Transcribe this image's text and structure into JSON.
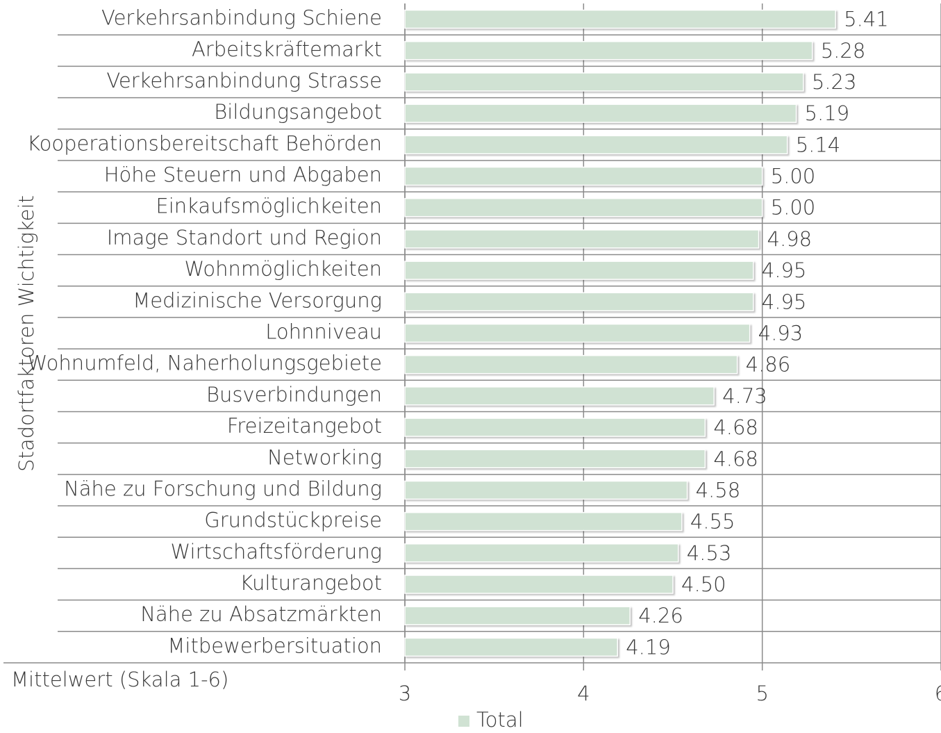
{
  "chart_data": {
    "type": "bar",
    "orientation": "horizontal",
    "y_label": "Stadortfaktoren Wichtigkeit",
    "x_label": "Mittelwert (Skala 1-6)",
    "categories": [
      "Verkehrsanbindung Schiene",
      "Arbeitskräftemarkt",
      "Verkehrsanbindung Strasse",
      "Bildungsangebot",
      "Kooperationsbereitschaft Behörden",
      "Höhe Steuern und Abgaben",
      "Einkaufsmöglichkeiten",
      "Image Standort und Region",
      "Wohnmöglichkeiten",
      "Medizinische Versorgung",
      "Lohnniveau",
      "Wohnumfeld, Naherholungsgebiete",
      "Busverbindungen",
      "Freizeitangebot",
      "Networking",
      "Nähe zu Forschung und Bildung",
      "Grundstückpreise",
      "Wirtschaftsförderung",
      "Kulturangebot",
      "Nähe zu Absatzmärkten",
      "Mitbewerbersituation"
    ],
    "series": [
      {
        "name": "Total",
        "color": "#d0e2d3",
        "values": [
          5.41,
          5.28,
          5.23,
          5.19,
          5.14,
          5.0,
          5.0,
          4.98,
          4.95,
          4.95,
          4.93,
          4.86,
          4.73,
          4.68,
          4.68,
          4.58,
          4.55,
          4.53,
          4.5,
          4.26,
          4.19
        ],
        "value_labels": [
          "5.41",
          "5.28",
          "5.23",
          "5.19",
          "5.14",
          "5.00",
          "5.00",
          "4.98",
          "4.95",
          "4.95",
          "4.93",
          "4.86",
          "4.73",
          "4.68",
          "4.68",
          "4.58",
          "4.55",
          "4.53",
          "4.50",
          "4.26",
          "4.19"
        ]
      }
    ],
    "xlim": [
      3,
      6
    ],
    "xticks": [
      3,
      4,
      5,
      6
    ],
    "grid": true,
    "legend": "bottom"
  }
}
